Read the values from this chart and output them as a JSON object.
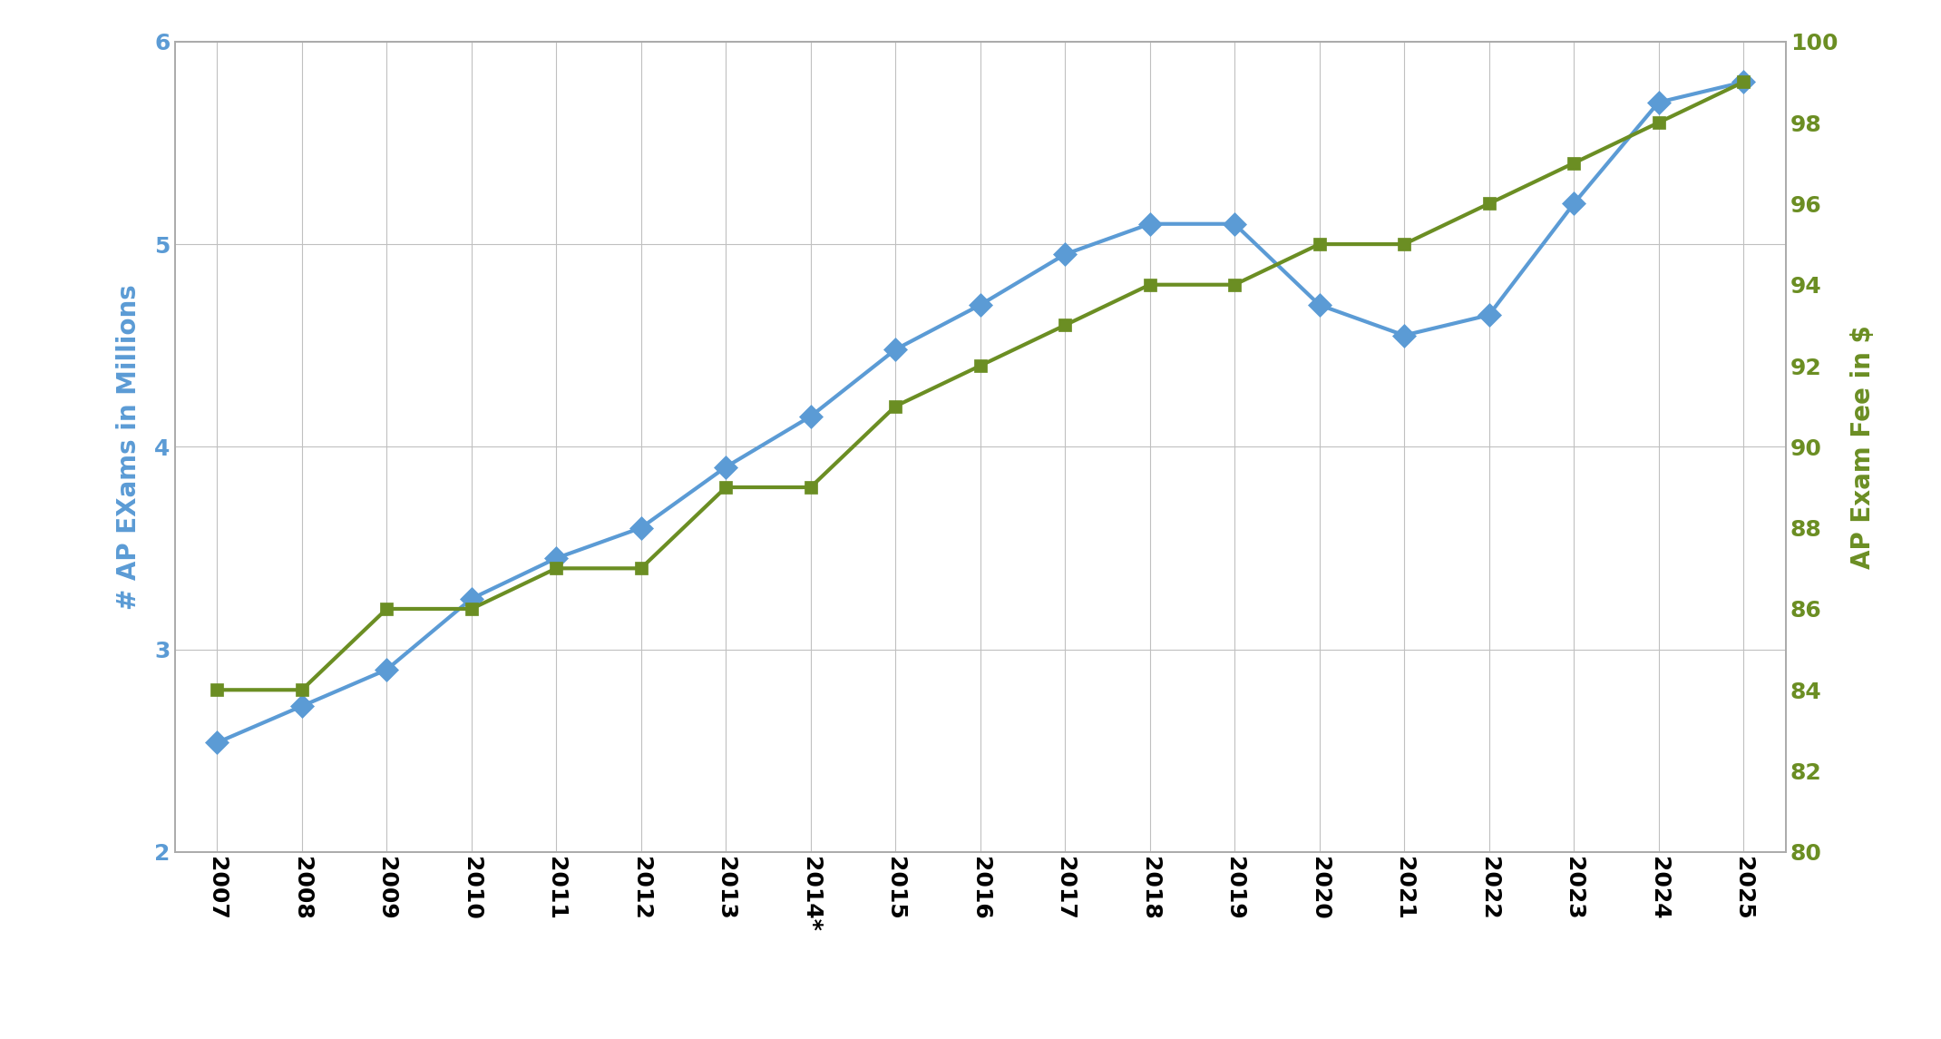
{
  "years": [
    "2007",
    "2008",
    "2009",
    "2010",
    "2011",
    "2012",
    "2013",
    "2014*",
    "2015",
    "2016",
    "2017",
    "2018",
    "2019",
    "2020",
    "2021",
    "2022",
    "2023",
    "2024",
    "2025"
  ],
  "exams_millions": [
    2.54,
    2.72,
    2.9,
    3.25,
    3.45,
    3.6,
    3.9,
    4.15,
    4.48,
    4.7,
    4.95,
    5.1,
    5.1,
    4.7,
    4.55,
    4.65,
    5.2,
    5.7,
    5.8
  ],
  "exam_fee": [
    84,
    84,
    86,
    86,
    87,
    87,
    89,
    89,
    91,
    92,
    93,
    94,
    94,
    95,
    95,
    96,
    97,
    98,
    99
  ],
  "blue_color": "#5B9BD5",
  "green_color": "#6B8E23",
  "left_ylabel": "# AP EXams in Millions",
  "right_ylabel": "AP Exam Fee in $",
  "ylim_left": [
    2,
    6
  ],
  "ylim_right": [
    80,
    100
  ],
  "yticks_left": [
    2,
    3,
    4,
    5,
    6
  ],
  "yticks_right": [
    80,
    82,
    84,
    86,
    88,
    90,
    92,
    94,
    96,
    98,
    100
  ],
  "background_color": "#ffffff",
  "plot_bg_color": "#ffffff",
  "grid_color": "#c0c0c0",
  "border_color": "#aaaaaa",
  "label_fontsize": 20,
  "tick_fontsize": 18,
  "marker_size_blue": 13,
  "marker_size_green": 10,
  "linewidth": 3.0
}
